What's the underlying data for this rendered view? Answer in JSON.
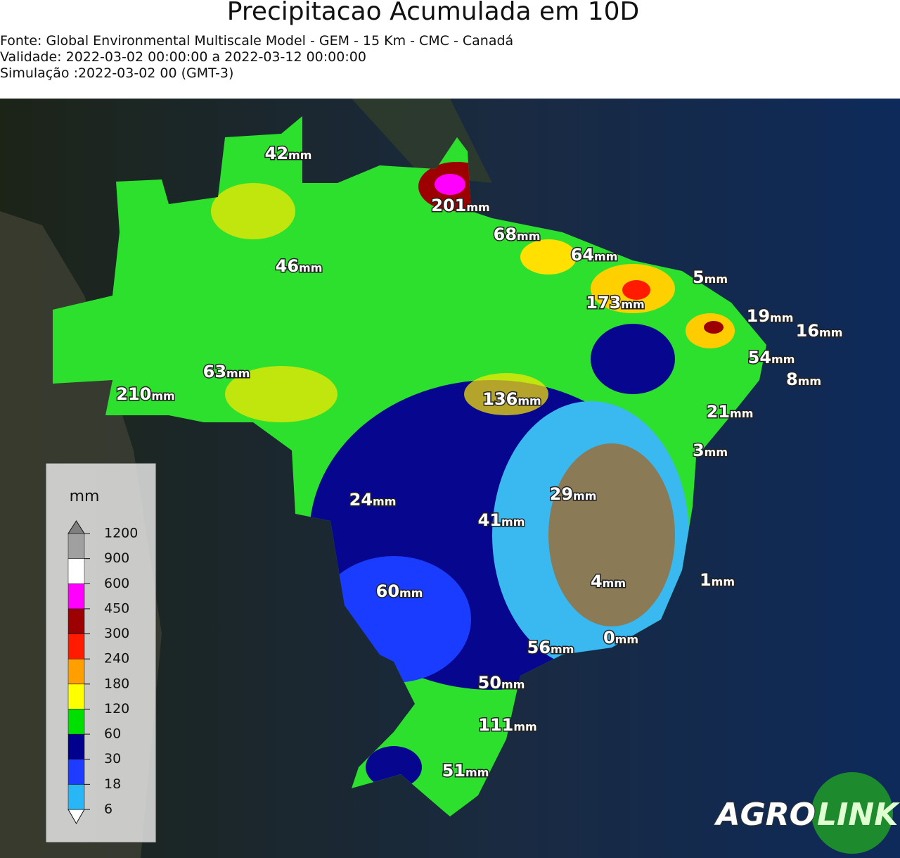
{
  "title": "Precipitacao Acumulada em 10D",
  "info": [
    "Fonte: Global Environmental Multiscale Model - GEM - 15 Km - CMC - Canadá",
    "Validade: 2022-03-02 00:00:00 a 2022-03-12 00:00:00",
    "Simulação :2022-03-02 00 (GMT-3)"
  ],
  "unit": "mm",
  "colorbar": {
    "ticks": [
      6,
      18,
      30,
      60,
      120,
      180,
      240,
      300,
      450,
      600,
      900,
      1200
    ],
    "colors": [
      "#29b6f6",
      "#1e3cff",
      "#00008f",
      "#00e000",
      "#ffff00",
      "#ffa000",
      "#ff1a00",
      "#9c0000",
      "#ff00ff",
      "#ffffff",
      "#a0a0a0"
    ],
    "under": "#ffffff",
    "over": "#808080"
  },
  "labels": [
    42,
    201,
    68,
    46,
    64,
    5,
    173,
    19,
    16,
    54,
    8,
    63,
    210,
    136,
    21,
    3,
    29,
    24,
    41,
    60,
    4,
    1,
    56,
    0,
    50,
    111,
    51
  ],
  "logo": [
    "AGRO",
    "LINK"
  ]
}
